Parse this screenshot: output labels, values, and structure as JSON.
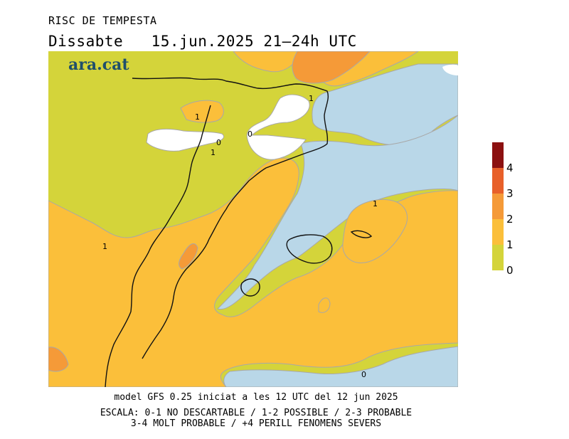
{
  "header": {
    "title": "RISC DE TEMPESTA",
    "day": "Dissabte",
    "date": "15.jun.2025",
    "hours": "21–24h UTC"
  },
  "map": {
    "logo_text": "ara.cat",
    "contour_labels": [
      "1",
      "1",
      "0",
      "0",
      "1",
      "1",
      "1",
      "0"
    ]
  },
  "colorbar": {
    "labels": [
      "4",
      "3",
      "2",
      "1",
      "0"
    ],
    "colors": {
      "level_0_1": "#d4d43a",
      "level_1_2": "#fbbf3a",
      "level_2_3": "#f59a38",
      "level_3_4": "#e8602a",
      "level_4_plus": "#8c1010"
    },
    "sea_color": "#b9d7e8",
    "nodata_color": "#ffffff"
  },
  "footer": {
    "model_line": "model GFS 0.25 iniciat a les 12 UTC del 12 jun 2025",
    "scale_line1": "ESCALA: 0-1 NO DESCARTABLE / 1-2 POSSIBLE / 2-3 PROBABLE",
    "scale_line2": "3-4 MOLT PROBABLE / +4 PERILL FENOMENS SEVERS"
  }
}
